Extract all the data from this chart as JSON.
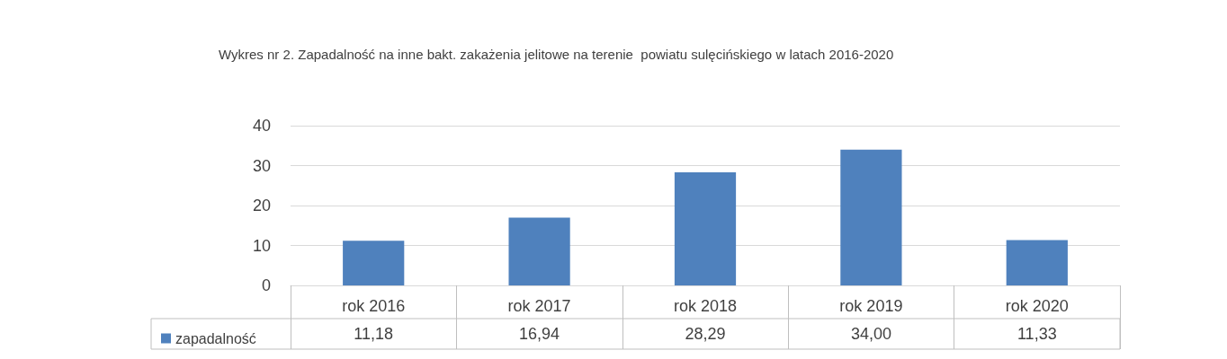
{
  "chart_data": {
    "type": "bar",
    "title": "Wykres nr 2. Zapadalność na inne bakt. zakażenia jelitowe na terenie  powiatu sulęcińskiego w latach 2016-2020",
    "categories": [
      "rok 2016",
      "rok 2017",
      "rok 2018",
      "rok 2019",
      "rok 2020"
    ],
    "series": [
      {
        "name": "zapadalność",
        "color": "#4f81bd",
        "values": [
          11.18,
          16.94,
          28.29,
          34.0,
          11.33
        ],
        "value_labels": [
          "11,18",
          "16,94",
          "28,29",
          "34,00",
          "11,33"
        ]
      }
    ],
    "ylim": [
      0,
      40
    ],
    "yticks": [
      0,
      10,
      20,
      30,
      40
    ],
    "grid": "y",
    "legend": "bottom left"
  }
}
